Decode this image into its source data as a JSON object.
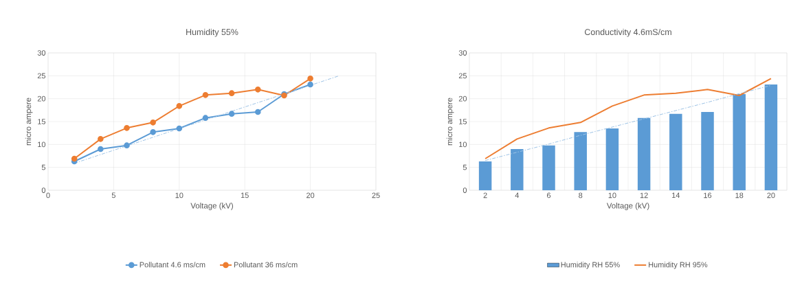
{
  "chart_data": [
    {
      "type": "line",
      "title": "Humidity 55%",
      "xlabel": "Voltage (kV)",
      "ylabel": "micro ampere",
      "xlim": [
        0,
        25
      ],
      "xticks": [
        0,
        5,
        10,
        15,
        20,
        25
      ],
      "ylim": [
        0,
        30
      ],
      "yticks": [
        0,
        5,
        10,
        15,
        20,
        25,
        30
      ],
      "grid": true,
      "legend": "bottom",
      "marker": "circle",
      "x": [
        2,
        4,
        6,
        8,
        10,
        12,
        14,
        16,
        18,
        20
      ],
      "series": [
        {
          "name": "Pollutant 4.6 ms/cm",
          "color": "#5b9bd5",
          "values": [
            6.3,
            9.0,
            9.8,
            12.7,
            13.5,
            15.8,
            16.7,
            17.1,
            21.0,
            23.1
          ]
        },
        {
          "name": "Pollutant 36 ms/cm",
          "color": "#ed7d31",
          "values": [
            6.9,
            11.2,
            13.6,
            14.8,
            18.4,
            20.8,
            21.2,
            22.0,
            20.7,
            24.4
          ]
        },
        {
          "type": "line",
          "color": "#9dc3e6",
          "line_style": "dashed",
          "marker": "none",
          "x": [
            2,
            22.2
          ],
          "values": [
            5.9,
            25.0
          ]
        }
      ]
    },
    {
      "type": "bar",
      "title": "Conductivity 4.6mS/cm",
      "xlabel": "Voltage (kV)",
      "ylabel": "micro ampere",
      "ylim": [
        0,
        30
      ],
      "yticks": [
        0,
        5,
        10,
        15,
        20,
        25,
        30
      ],
      "grid": true,
      "legend": "bottom",
      "categories": [
        "2",
        "4",
        "6",
        "8",
        "10",
        "12",
        "14",
        "16",
        "18",
        "20"
      ],
      "series": [
        {
          "name": "Humidity RH 55%",
          "color": "#5b9bd5",
          "values": [
            6.3,
            9.0,
            9.8,
            12.7,
            13.5,
            15.8,
            16.7,
            17.1,
            21.0,
            23.1
          ]
        },
        {
          "name": "Humidity RH 95%",
          "type": "line",
          "color": "#ed7d31",
          "values": [
            6.9,
            11.2,
            13.6,
            14.8,
            18.4,
            20.8,
            21.2,
            22.0,
            20.7,
            24.4
          ]
        },
        {
          "type": "line",
          "color": "#9dc3e6",
          "line_style": "dashed",
          "values": [
            6.5,
            8.3,
            10.1,
            12.0,
            13.8,
            15.6,
            17.4,
            19.2,
            21.1,
            22.9
          ]
        }
      ]
    }
  ]
}
